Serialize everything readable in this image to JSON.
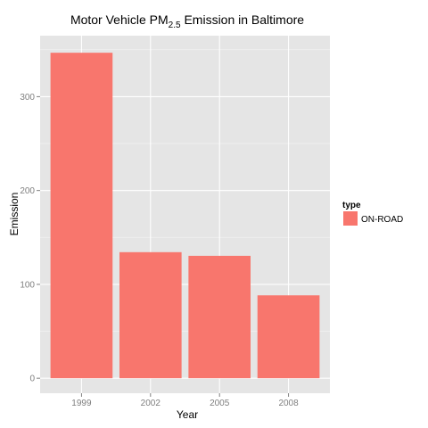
{
  "chart_data": {
    "type": "bar",
    "title": {
      "main": "Motor Vehicle PM",
      "subscript": "2.5",
      "rest": " Emission in Baltimore"
    },
    "xlabel": "Year",
    "ylabel": "Emission",
    "categories": [
      "1999",
      "2002",
      "2005",
      "2008"
    ],
    "series": [
      {
        "name": "ON-ROAD",
        "values": [
          346.8,
          134.3,
          130.4,
          88.3
        ]
      }
    ],
    "ylim": [
      -16,
      365
    ],
    "yticks": [
      0,
      100,
      200,
      300
    ],
    "grid": true,
    "legend": {
      "title": "type",
      "position": "right"
    },
    "colors": {
      "bar": "#F8766D",
      "panel": "#E5E5E5",
      "grid_major": "#FFFFFF",
      "grid_minor": "#F2F2F2",
      "tick_text": "#7F7F7F",
      "tick_mark": "#7F7F7F"
    }
  }
}
